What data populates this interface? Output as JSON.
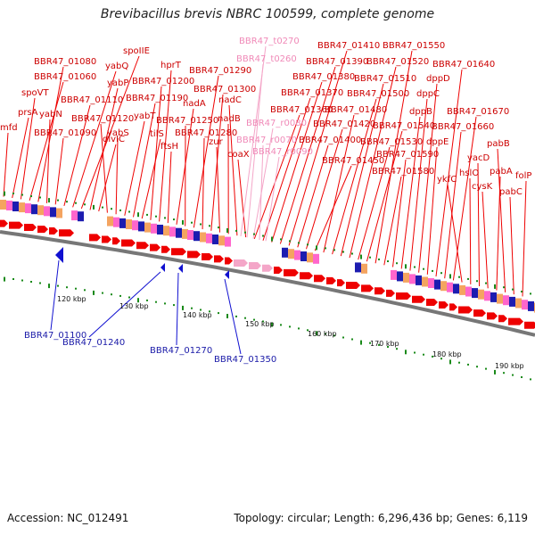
{
  "title": "Brevibacillus brevis NBRC 100599, complete genome",
  "footer": {
    "accession": "Accession: NC_012491",
    "summary": "Topology: circular; Length: 6,296,436 bp; Genes: 6,119"
  },
  "colors": {
    "forward_gene": "#ee0000",
    "rna_gene": "#f4a6c8",
    "reverse_gene": "#1010d0",
    "backbone": "#777777",
    "tick_mark": "#1a8a1a"
  },
  "forward_labels": [
    "mfd",
    "prsA",
    "spoVT",
    "BBR47_01060",
    "BBR47_01080",
    "yabN",
    "BBR47_01090",
    "BBR47_01110",
    "yabQ",
    "spoIIE",
    "yabP",
    "divIC",
    "BBR47_01120",
    "yabS",
    "yabT",
    "BBR47_01190",
    "tilS",
    "BBR47_01200",
    "hprT",
    "ftsH",
    "nadA",
    "BBR47_01250",
    "BBR47_01290",
    "BBR47_01280",
    "BBR47_01300",
    "zur",
    "nadB",
    "nadC",
    "coaX",
    "BBR47_01360",
    "BBR47_01370",
    "BBR47_01380",
    "BBR47_01390",
    "BBR47_01410",
    "BBR47_01400",
    "BBR47_01420",
    "BBR47_01450",
    "BBR47_01480",
    "BBR47_01500",
    "BBR47_01510",
    "BBR47_01520",
    "BBR47_01530",
    "BBR47_01540",
    "BBR47_01550",
    "BBR47_01580",
    "BBR47_01590",
    "dppB",
    "dppC",
    "dppD",
    "dppE",
    "BBR47_01640",
    "BBR47_01660",
    "BBR47_01670",
    "ykfC",
    "hslO",
    "yacD",
    "cysK",
    "pabA",
    "pabB",
    "pabC",
    "folP"
  ],
  "rna_labels": [
    "BBR47_t0270",
    "BBR47_t0260",
    "BBR47_r0080",
    "BBR47_r0070",
    "BBR47_r0090"
  ],
  "reverse_labels": [
    "BBR47_01100",
    "BBR47_01240",
    "BBR47_01270",
    "BBR47_01350"
  ],
  "ticks": [
    "120 kbp",
    "130 kbp",
    "140 kbp",
    "150 kbp",
    "160 kbp",
    "170 kbp",
    "180 kbp",
    "190 kbp"
  ]
}
